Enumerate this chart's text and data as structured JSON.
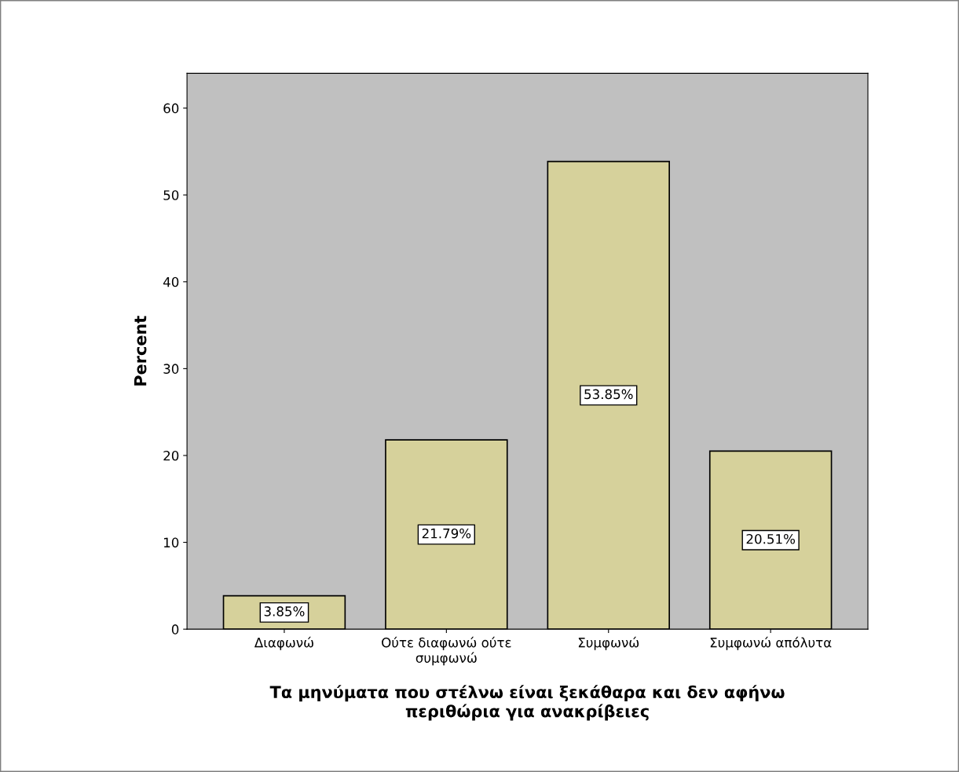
{
  "chart_data": {
    "type": "bar",
    "ylabel": "Percent",
    "xlabel": "Τα μηνύματα που στέλνω είναι ξεκάθαρα και δεν αφήνω\nπεριθώρια για ανακρίβειες",
    "categories": [
      "Διαφωνώ",
      "Ούτε διαφωνώ ούτε\nσυμφωνώ",
      "Συμφωνώ",
      "Συμφωνώ απόλυτα"
    ],
    "values": [
      3.85,
      21.79,
      53.85,
      20.51
    ],
    "value_labels": [
      "3.85%",
      "21.79%",
      "53.85%",
      "20.51%"
    ],
    "color": "#d6d19b",
    "ylim": [
      0,
      64
    ],
    "yticks": [
      0,
      10,
      20,
      30,
      40,
      50,
      60
    ],
    "grid": false,
    "legend": false
  }
}
